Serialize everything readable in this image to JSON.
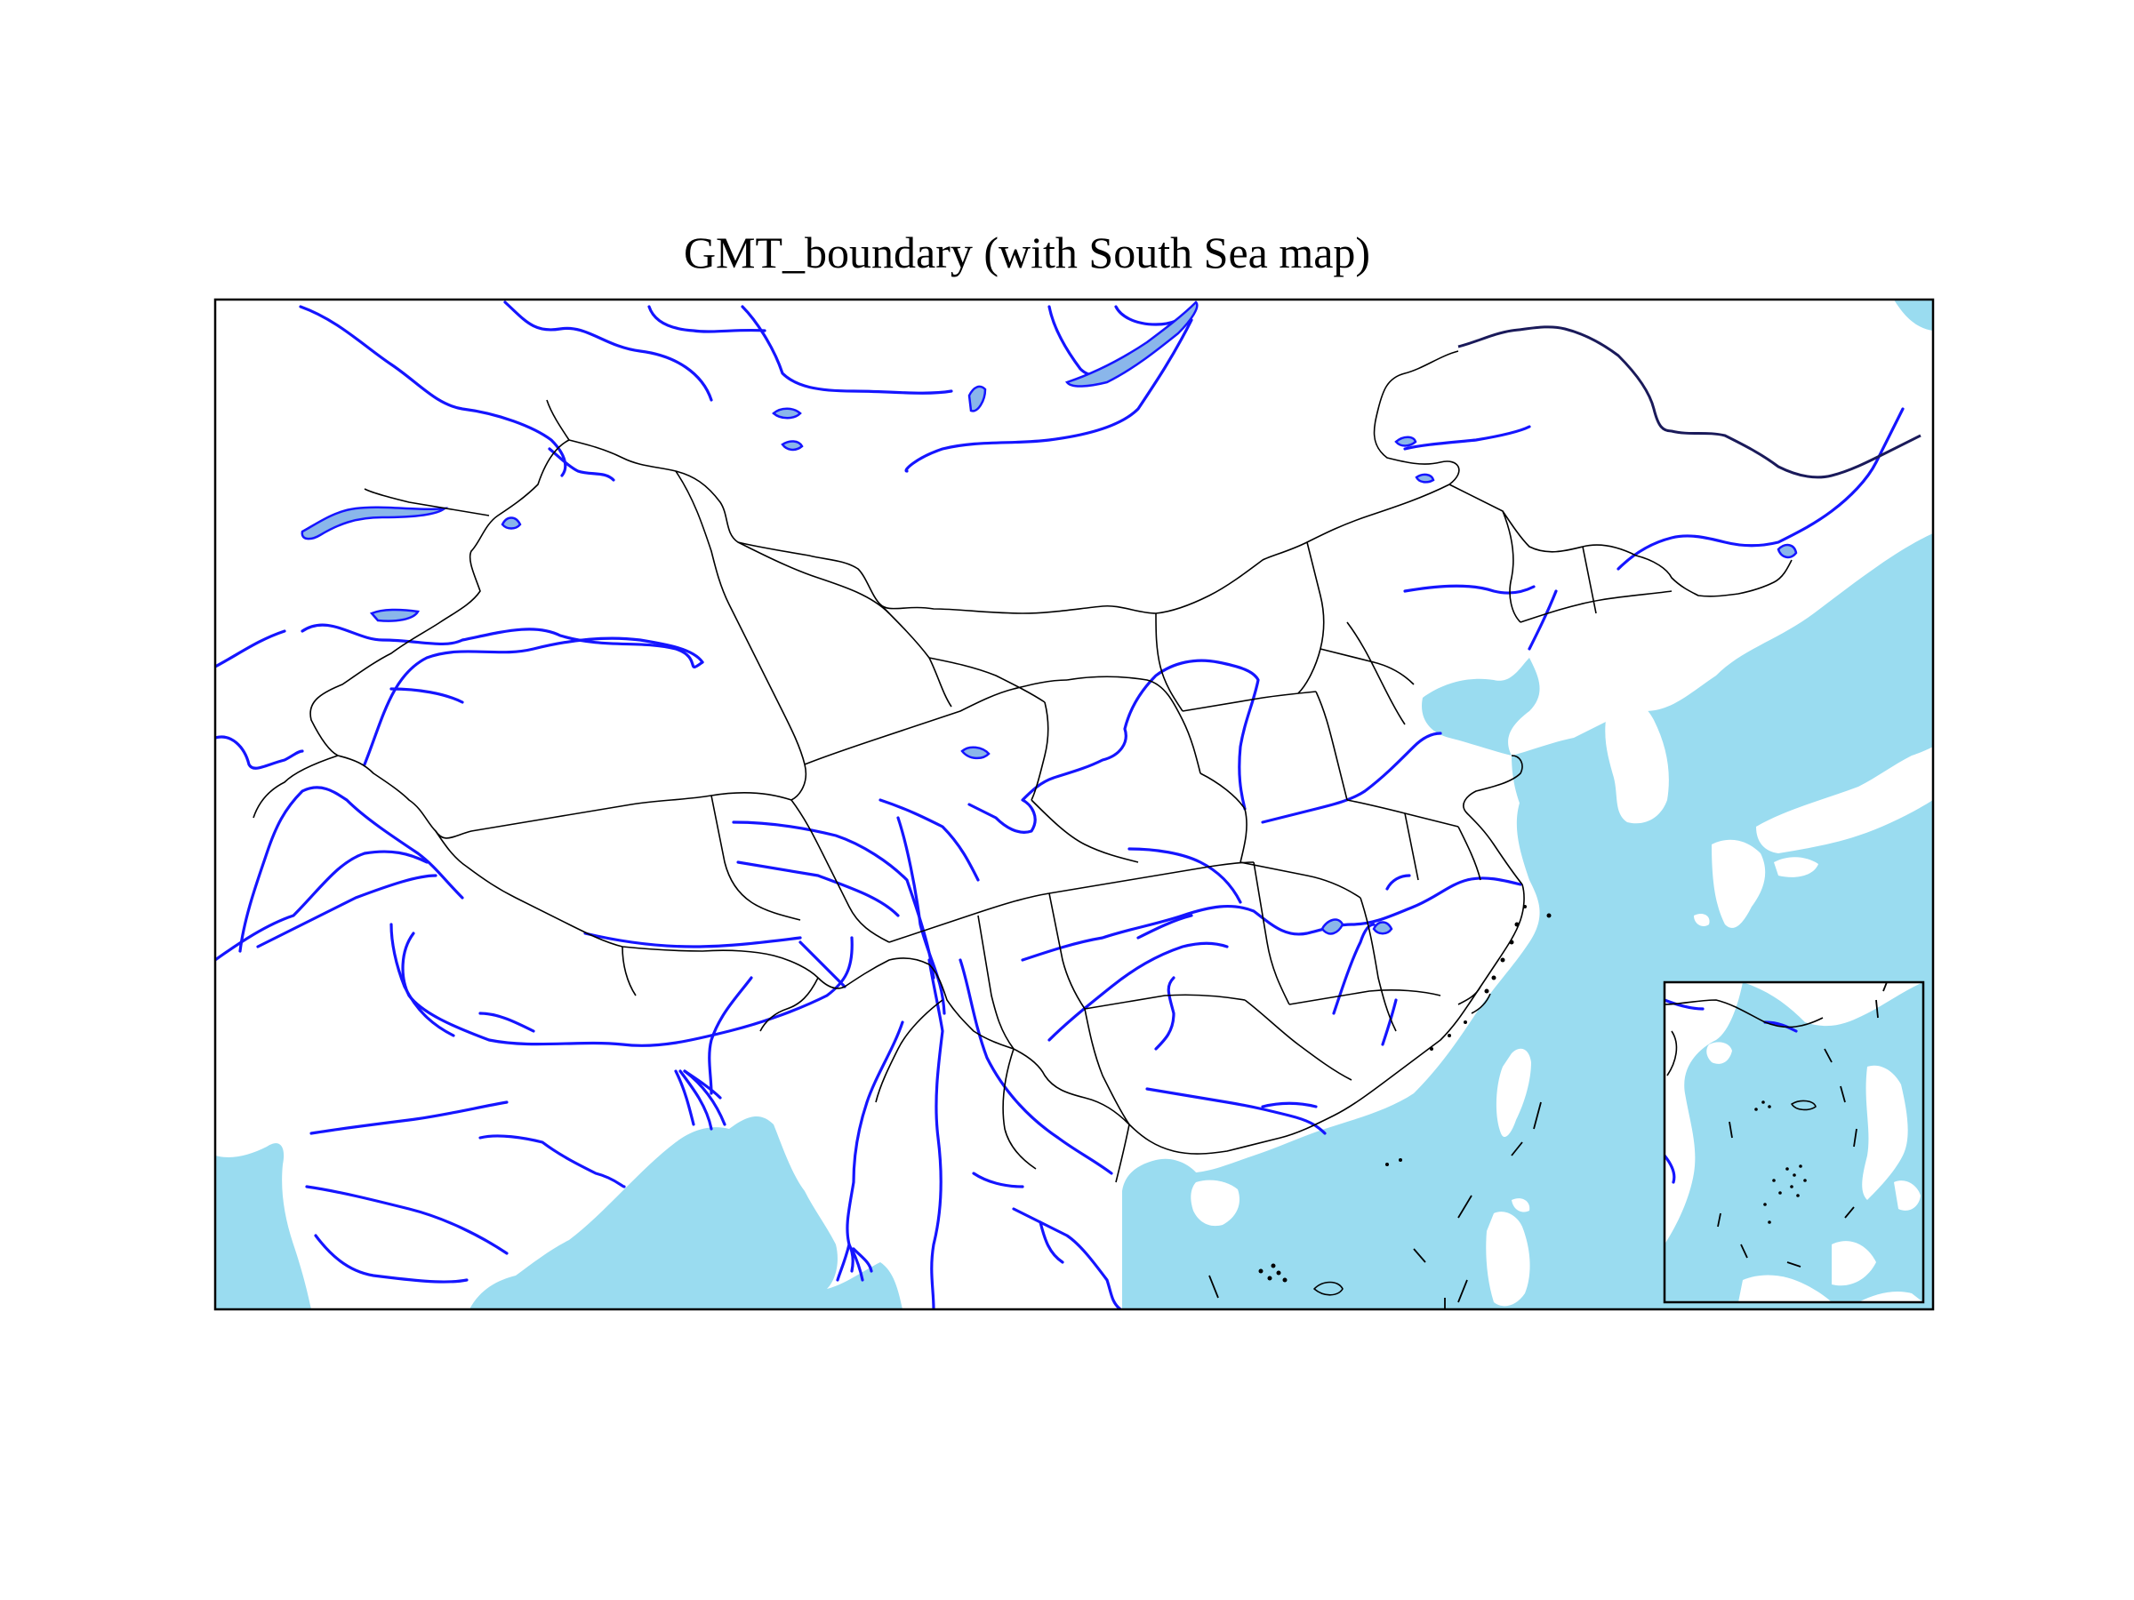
{
  "title": "GMT_boundary (with South Sea map)",
  "colors": {
    "sea": "#9adcf0",
    "river": "#1515ff",
    "lake": "#8ab6ea",
    "boundary": "#000000",
    "land": "#ffffff"
  },
  "layers": [
    "sea",
    "rivers",
    "lakes",
    "province-boundaries",
    "national-boundary",
    "south-sea-inset"
  ],
  "inset": {
    "name": "south-sea-map",
    "position": "bottom-right"
  }
}
